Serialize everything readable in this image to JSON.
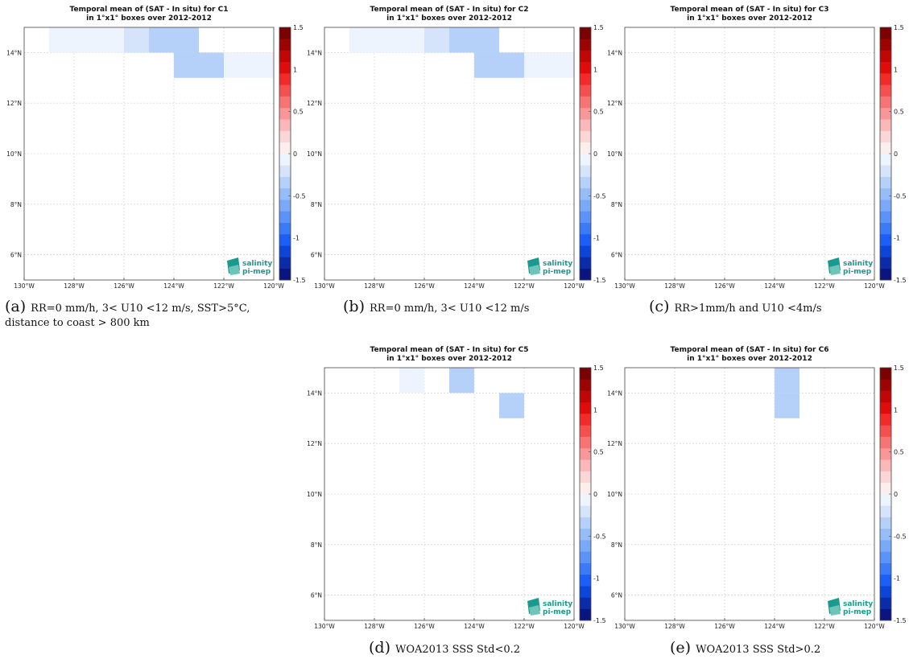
{
  "colorbar": {
    "ticks": [
      "1.5",
      "1",
      "0.5",
      "0",
      "-0.5",
      "-1",
      "-1.5"
    ],
    "range": [
      -1.5,
      1.5
    ],
    "colors_negative": [
      "#0b1580",
      "#0b2ca8",
      "#0d45d8",
      "#1b5ef8",
      "#3b7bf8",
      "#5c93f8",
      "#7aa9f8",
      "#97bdf8",
      "#b6d1f9",
      "#d6e4fb",
      "#eef4fd"
    ],
    "colors_positive": [
      "#fdeeee",
      "#fbd6d6",
      "#fab8b8",
      "#f89797",
      "#f67474",
      "#f55050",
      "#f22a2a",
      "#e00c0c",
      "#c00606",
      "#9c0404",
      "#7a0202"
    ]
  },
  "axes": {
    "x_ticks": [
      "130°W",
      "128°W",
      "126°W",
      "124°W",
      "122°W",
      "120°W"
    ],
    "y_ticks": [
      "6°N",
      "8°N",
      "10°N",
      "12°N",
      "14°N"
    ],
    "lon_range": [
      -130,
      -120
    ],
    "lat_range": [
      5,
      15
    ]
  },
  "logo": {
    "line1": "salinity",
    "line2": "pi-mep",
    "color": "#1a9a8e"
  },
  "chart_data": [
    {
      "type": "heatmap",
      "title": "Temporal mean of (SAT - In situ) for C1",
      "subtitle": "in 1°x1° boxes over 2012-2012",
      "cells": [
        {
          "lon": -129,
          "lat": 14,
          "value": -0.1
        },
        {
          "lon": -128,
          "lat": 14,
          "value": -0.1
        },
        {
          "lon": -127,
          "lat": 14,
          "value": -0.1
        },
        {
          "lon": -126,
          "lat": 14,
          "value": -0.2
        },
        {
          "lon": -125,
          "lat": 14,
          "value": -0.35
        },
        {
          "lon": -124,
          "lat": 14,
          "value": -0.35
        },
        {
          "lon": -124,
          "lat": 13,
          "value": -0.35
        },
        {
          "lon": -123,
          "lat": 13,
          "value": -0.35
        },
        {
          "lon": -122,
          "lat": 13,
          "value": -0.1
        },
        {
          "lon": -121,
          "lat": 13,
          "value": -0.1
        }
      ],
      "caption": {
        "label": "(a)",
        "text": "RR=0 mm/h, 3< U10 <12 m/s, SST>5°C, distance to coast > 800 km"
      }
    },
    {
      "type": "heatmap",
      "title": "Temporal mean of (SAT - In situ) for C2",
      "subtitle": "in 1°x1° boxes over 2012-2012",
      "cells": [
        {
          "lon": -129,
          "lat": 14,
          "value": -0.1
        },
        {
          "lon": -128,
          "lat": 14,
          "value": -0.1
        },
        {
          "lon": -127,
          "lat": 14,
          "value": -0.1
        },
        {
          "lon": -126,
          "lat": 14,
          "value": -0.2
        },
        {
          "lon": -125,
          "lat": 14,
          "value": -0.35
        },
        {
          "lon": -124,
          "lat": 14,
          "value": -0.35
        },
        {
          "lon": -124,
          "lat": 13,
          "value": -0.35
        },
        {
          "lon": -123,
          "lat": 13,
          "value": -0.35
        },
        {
          "lon": -122,
          "lat": 13,
          "value": -0.1
        },
        {
          "lon": -121,
          "lat": 13,
          "value": -0.1
        }
      ],
      "caption": {
        "label": "(b)",
        "text": "RR=0 mm/h, 3< U10 <12 m/s"
      }
    },
    {
      "type": "heatmap",
      "title": "Temporal mean of (SAT - In situ) for C3",
      "subtitle": "in 1°x1° boxes over 2012-2012",
      "cells": [],
      "caption": {
        "label": "(c)",
        "text": "RR>1mm/h and U10 <4m/s"
      }
    },
    {
      "type": "heatmap",
      "title": "Temporal mean of (SAT - In situ) for C5",
      "subtitle": "in 1°x1° boxes over 2012-2012",
      "cells": [
        {
          "lon": -127,
          "lat": 14,
          "value": -0.1
        },
        {
          "lon": -125,
          "lat": 14,
          "value": -0.35
        },
        {
          "lon": -123,
          "lat": 13,
          "value": -0.35
        }
      ],
      "caption": {
        "label": "(d)",
        "text": "WOA2013 SSS Std<0.2"
      }
    },
    {
      "type": "heatmap",
      "title": "Temporal mean of (SAT - In situ) for C6",
      "subtitle": "in 1°x1° boxes over 2012-2012",
      "cells": [
        {
          "lon": -124,
          "lat": 14,
          "value": -0.35
        },
        {
          "lon": -124,
          "lat": 13,
          "value": -0.35
        }
      ],
      "caption": {
        "label": "(e)",
        "text": "WOA2013 SSS Std>0.2"
      }
    }
  ]
}
